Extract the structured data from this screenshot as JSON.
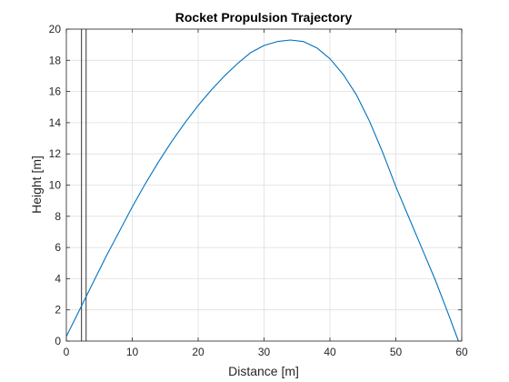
{
  "chart_data": {
    "type": "line",
    "title": "Rocket Propulsion Trajectory",
    "xlabel": "Distance [m]",
    "ylabel": "Height [m]",
    "xlim": [
      0,
      60
    ],
    "ylim": [
      0,
      20
    ],
    "xticks": [
      0,
      10,
      20,
      30,
      40,
      50,
      60
    ],
    "yticks": [
      0,
      2,
      4,
      6,
      8,
      10,
      12,
      14,
      16,
      18,
      20
    ],
    "grid": true,
    "series": [
      {
        "color": "#0072bd",
        "x": [
          0,
          2,
          4,
          6,
          8,
          10,
          12,
          14,
          16,
          18,
          20,
          22,
          24,
          26,
          28,
          30,
          32,
          34,
          36,
          38,
          40,
          42,
          44,
          46,
          48,
          50,
          52,
          54,
          56,
          58,
          59.5
        ],
        "y": [
          0.3,
          2.0,
          3.7,
          5.4,
          7.0,
          8.6,
          10.1,
          11.5,
          12.8,
          14.0,
          15.1,
          16.1,
          17.0,
          17.8,
          18.5,
          18.95,
          19.2,
          19.3,
          19.2,
          18.8,
          18.1,
          17.1,
          15.8,
          14.1,
          12.1,
          9.9,
          7.9,
          5.9,
          3.9,
          1.7,
          0.0
        ]
      }
    ],
    "vertical_lines": [
      {
        "x": 2.3,
        "color": "#333333"
      },
      {
        "x": 3.0,
        "color": "#333333"
      }
    ]
  }
}
